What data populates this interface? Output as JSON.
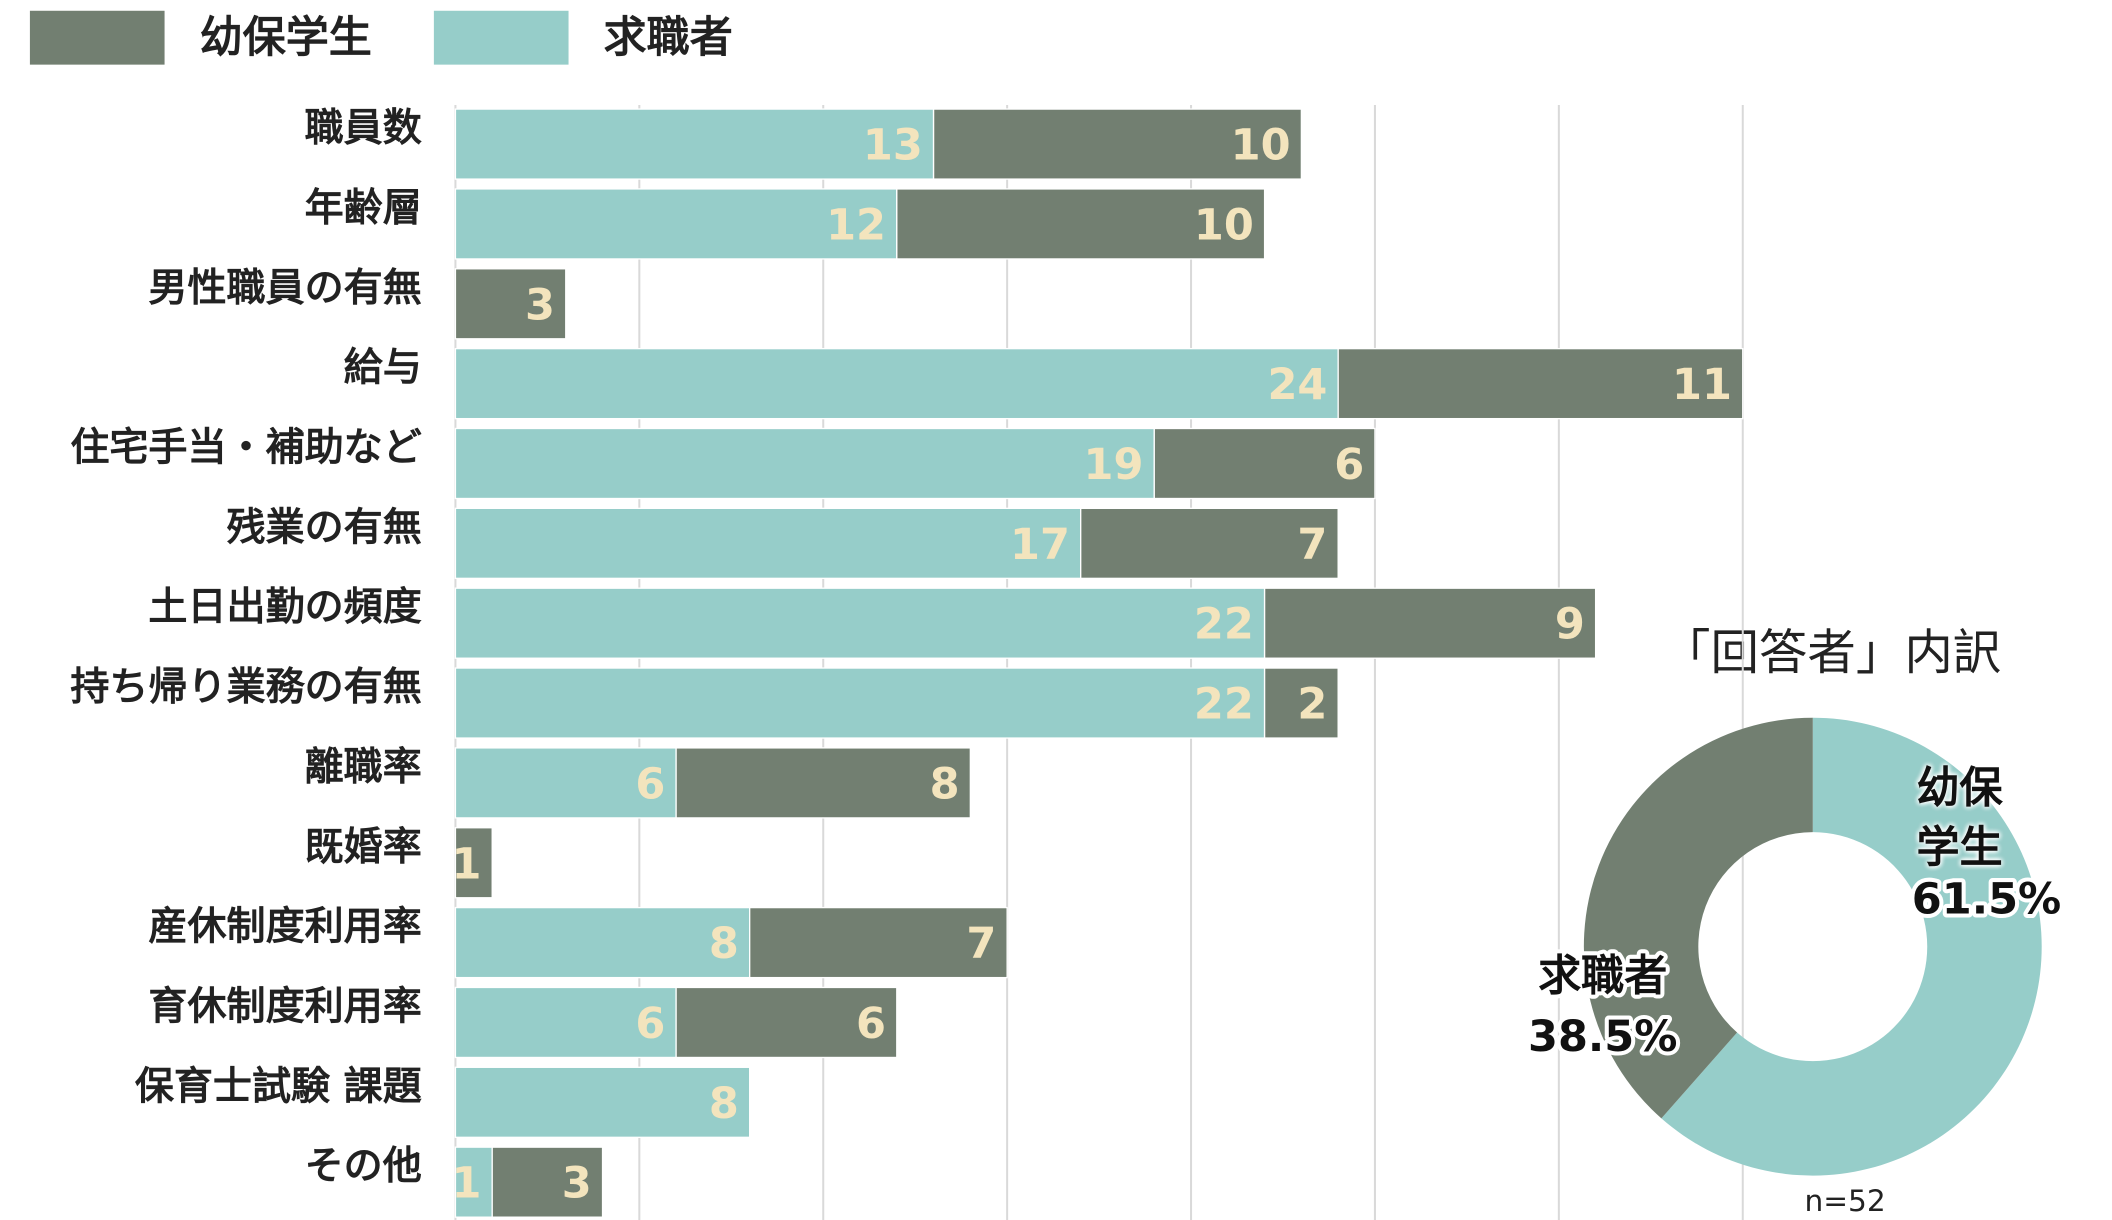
{
  "chart_data": [
    {
      "type": "bar",
      "orientation": "horizontal",
      "stacked": true,
      "categories": [
        "職員数",
        "年齢層",
        "男性職員の有無",
        "給与",
        "住宅手当・補助など",
        "残業の有無",
        "土日出勤の頻度",
        "持ち帰り業務の有無",
        "離職率",
        "既婚率",
        "産休制度利用率",
        "育休制度利用率",
        "保育士試験 課題",
        "その他"
      ],
      "series": [
        {
          "name": "幼保学生",
          "color": "#727f71",
          "values": [
            10,
            10,
            3,
            11,
            6,
            7,
            9,
            2,
            8,
            1,
            7,
            6,
            null,
            3
          ]
        },
        {
          "name": "求職者",
          "color": "#96cdc9",
          "values": [
            13,
            12,
            null,
            24,
            19,
            17,
            22,
            22,
            6,
            null,
            8,
            6,
            8,
            1
          ]
        }
      ],
      "xlim": [
        0,
        35
      ],
      "xticks": [
        0,
        5,
        10,
        15,
        20,
        25,
        30,
        35
      ],
      "grid": true,
      "legend": "top-left"
    },
    {
      "type": "donut",
      "title": "「回答者」内訳",
      "categories": [
        "幼保学生",
        "求職者"
      ],
      "values": [
        61.5,
        38.5
      ],
      "value_labels": [
        "61.5%",
        "38.5%"
      ],
      "colors": [
        "#96cdc9",
        "#727f71"
      ],
      "note": "n=52"
    }
  ]
}
